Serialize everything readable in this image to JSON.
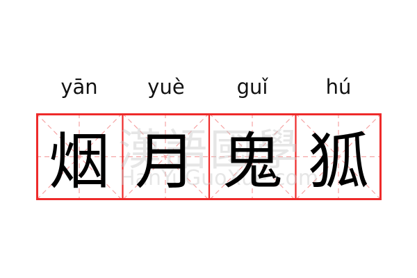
{
  "pinyin": [
    "yān",
    "yuè",
    "guǐ",
    "hú"
  ],
  "characters": [
    "烟",
    "月",
    "鬼",
    "狐"
  ],
  "watermark": {
    "chinese": "漢語國學",
    "latin": "HanYuGuoXue.com"
  },
  "colors": {
    "border": "#ee2a2a",
    "guide": "#f5a3a3",
    "text": "#000000"
  }
}
